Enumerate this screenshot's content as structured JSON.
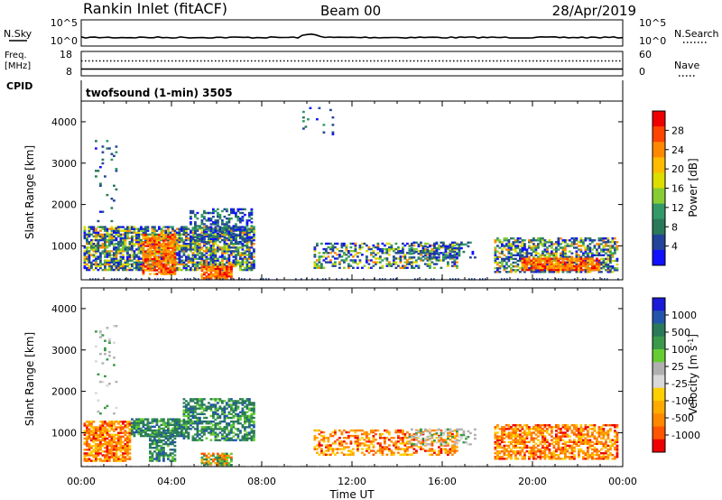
{
  "header": {
    "station": "Rankin Inlet (fitACF)",
    "beam": "Beam 00",
    "date": "28/Apr/2019"
  },
  "noise_panel": {
    "left_label": "N.Sky",
    "left_ticks": [
      "10^5",
      "10^0"
    ],
    "right_ticks": [
      "10^5",
      "10^0"
    ],
    "right_label": "N.Search"
  },
  "freq_panel": {
    "label_top": "Freq.",
    "label_unit": "[MHz]",
    "left_ticks": [
      "18",
      "8"
    ],
    "right_ticks": [
      "60",
      "0"
    ],
    "right_label": "Nave",
    "cpid_label": "CPID",
    "cpid_text": "twofsound (1-min) 3505"
  },
  "axes": {
    "y_label": "Slant Range [km]",
    "y_ticks": [
      "4000",
      "3000",
      "2000",
      "1000"
    ],
    "x_ticks": [
      "00:00",
      "04:00",
      "08:00",
      "12:00",
      "16:00",
      "20:00",
      "00:00"
    ],
    "x_label": "Time UT"
  },
  "colorbars": {
    "power": {
      "title": "Power [dB]",
      "ticks": [
        "28",
        "24",
        "20",
        "16",
        "12",
        "8",
        "4"
      ],
      "colors": [
        "#ee0000",
        "#ff4400",
        "#ff8800",
        "#ffbb00",
        "#dddd00",
        "#88cc33",
        "#339966",
        "#2a7a5a",
        "#224499",
        "#1111ff"
      ]
    },
    "velocity": {
      "title": "Velocity [m s",
      "title_sup": "-1",
      "title_end": "]",
      "ticks": [
        "1000",
        "500",
        "100",
        "25",
        "-25",
        "-100",
        "-500",
        "-1000"
      ],
      "colors": [
        "#1a1ad8",
        "#2255aa",
        "#2a7a5a",
        "#3a9a4a",
        "#66cc33",
        "#b0b0b0",
        "#d8d8d8",
        "#ffd000",
        "#ffaa00",
        "#ff8800",
        "#ff5500",
        "#ee0000"
      ]
    }
  },
  "chart_data": {
    "type": "heatmap",
    "x_range_hours": [
      0,
      24
    ],
    "y_range_km": [
      180,
      4500
    ],
    "power_echo_regions": [
      {
        "t0": 0.1,
        "t1": 7.6,
        "r0": 400,
        "r1": 1450,
        "density": 0.75,
        "level": "mixed"
      },
      {
        "t0": 2.7,
        "t1": 4.2,
        "r0": 300,
        "r1": 1250,
        "density": 0.8,
        "level": "strong"
      },
      {
        "t0": 5.3,
        "t1": 6.6,
        "r0": 200,
        "r1": 500,
        "density": 0.9,
        "level": "strong"
      },
      {
        "t0": 4.8,
        "t1": 7.5,
        "r0": 1100,
        "r1": 1900,
        "density": 0.45,
        "level": "weak"
      },
      {
        "t0": 10.3,
        "t1": 16.6,
        "r0": 450,
        "r1": 1050,
        "density": 0.45,
        "level": "mixed"
      },
      {
        "t0": 14.5,
        "t1": 17.5,
        "r0": 700,
        "r1": 1100,
        "density": 0.35,
        "level": "weak"
      },
      {
        "t0": 18.3,
        "t1": 23.8,
        "r0": 350,
        "r1": 1200,
        "density": 0.6,
        "level": "mixed"
      },
      {
        "t0": 19.5,
        "t1": 23.0,
        "r0": 400,
        "r1": 700,
        "density": 0.8,
        "level": "strong"
      },
      {
        "t0": 0.6,
        "t1": 1.6,
        "r0": 1400,
        "r1": 3600,
        "density": 0.08,
        "level": "weak"
      },
      {
        "t0": 9.8,
        "t1": 11.2,
        "r0": 3500,
        "r1": 4400,
        "density": 0.06,
        "level": "weak"
      }
    ],
    "velocity_echo_regions": [
      {
        "t0": 0.1,
        "t1": 2.2,
        "r0": 300,
        "r1": 1250,
        "density": 0.75,
        "sign": "negative"
      },
      {
        "t0": 2.2,
        "t1": 4.5,
        "r0": 900,
        "r1": 1350,
        "density": 0.75,
        "sign": "positive"
      },
      {
        "t0": 3.0,
        "t1": 4.2,
        "r0": 300,
        "r1": 1000,
        "density": 0.6,
        "sign": "positive"
      },
      {
        "t0": 4.5,
        "t1": 7.6,
        "r0": 800,
        "r1": 1800,
        "density": 0.6,
        "sign": "positive"
      },
      {
        "t0": 5.3,
        "t1": 6.6,
        "r0": 200,
        "r1": 500,
        "density": 0.7,
        "sign": "mixed"
      },
      {
        "t0": 10.3,
        "t1": 16.6,
        "r0": 450,
        "r1": 1050,
        "density": 0.45,
        "sign": "negative"
      },
      {
        "t0": 14.5,
        "t1": 17.5,
        "r0": 700,
        "r1": 1100,
        "density": 0.35,
        "sign": "near-zero"
      },
      {
        "t0": 18.3,
        "t1": 23.8,
        "r0": 350,
        "r1": 1200,
        "density": 0.65,
        "sign": "negative"
      },
      {
        "t0": 0.6,
        "t1": 1.6,
        "r0": 1400,
        "r1": 3600,
        "density": 0.08,
        "sign": "near-zero"
      }
    ]
  }
}
